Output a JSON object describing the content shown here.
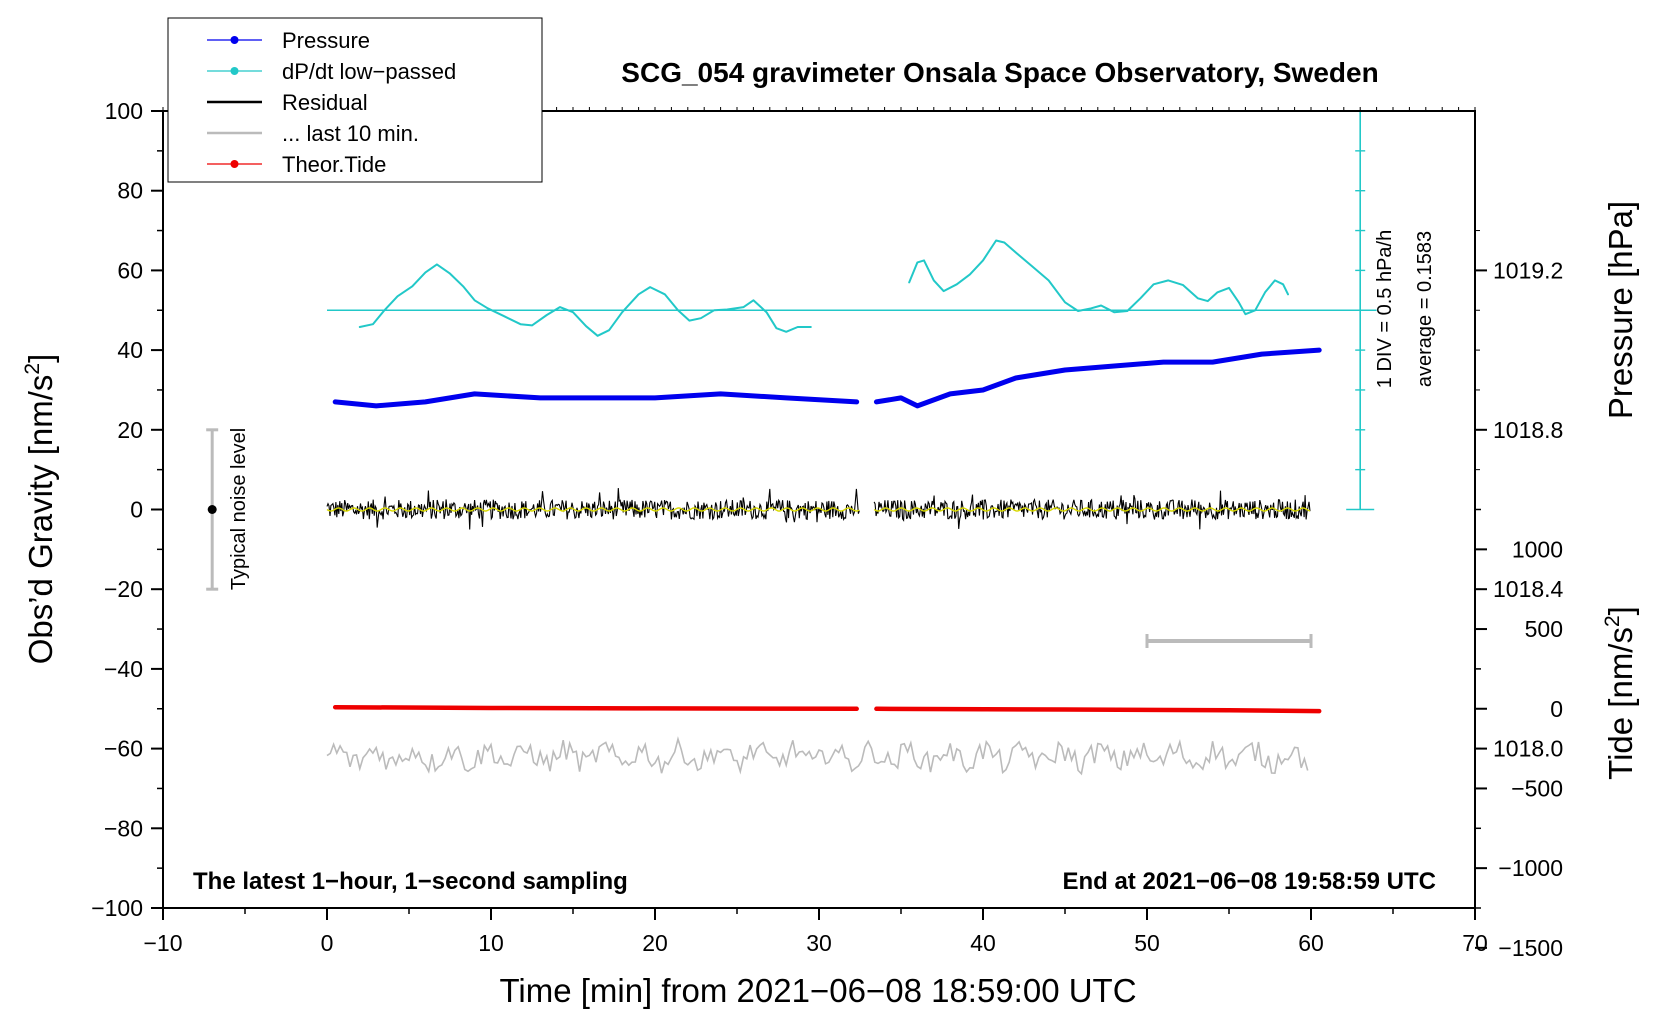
{
  "chart_data": {
    "type": "line",
    "title": "SCG_054 gravimeter Onsala Space Observatory, Sweden",
    "xlabel": "Time [min] from 2021−06−08 18:59:00 UTC",
    "ylabel_main": "Obs’d Gravity [nm/s",
    "ylabel_main_sup": "2",
    "ylabel_main_end": "]",
    "ylabel_pressure": "Pressure [hPa]",
    "ylabel_tide": "Tide [nm/s",
    "ylabel_tide_sup": "2",
    "ylabel_tide_end": "]",
    "xlim": [
      -10,
      70
    ],
    "ylim": [
      -100,
      100
    ],
    "x_ticks": [
      "−10",
      "0",
      "10",
      "20",
      "30",
      "40",
      "50",
      "60",
      "70"
    ],
    "y_ticks": [
      "100",
      "80",
      "60",
      "40",
      "20",
      "0",
      "−20",
      "−40",
      "−60",
      "−80",
      "−100"
    ],
    "pressure_ticks": [
      "1019.2",
      "1018.8",
      "1018.4",
      "1018.0"
    ],
    "tide_ticks": [
      "1000",
      "500",
      "0",
      "−500",
      "−1000",
      "−1500"
    ],
    "legend": {
      "position": "top-left",
      "entries": [
        {
          "label": "Pressure",
          "color": "#0000ee",
          "marker": true
        },
        {
          "label": "dP/dt low−passed",
          "color": "#22c8c8",
          "marker": true
        },
        {
          "label": "Residual",
          "color": "#000000",
          "marker": false
        },
        {
          "label": "... last 10 min.",
          "color": "#bbbbbb",
          "marker": false
        },
        {
          "label": "Theor.Tide",
          "color": "#ee0000",
          "marker": true
        }
      ]
    },
    "annotations": {
      "bottom_left": "The latest 1−hour, 1−second sampling",
      "bottom_right": "End at 2021−06−08 19:58:59 UTC",
      "noise": "Typical noise level",
      "div": "1 DIV = 0.5 hPa/h",
      "average": "average = 0.1583"
    },
    "series": [
      {
        "name": "Pressure",
        "unit": "hPa",
        "color": "#0000ee",
        "segments": [
          [
            [
              0.5,
              1018.87
            ],
            [
              3,
              1018.86
            ],
            [
              6,
              1018.87
            ],
            [
              9,
              1018.89
            ],
            [
              13,
              1018.88
            ],
            [
              17,
              1018.88
            ],
            [
              20,
              1018.88
            ],
            [
              24,
              1018.89
            ],
            [
              28,
              1018.88
            ],
            [
              32.3,
              1018.87
            ]
          ],
          [
            [
              33.5,
              1018.87
            ],
            [
              35,
              1018.88
            ],
            [
              36,
              1018.86
            ],
            [
              38,
              1018.89
            ],
            [
              40,
              1018.9
            ],
            [
              42,
              1018.93
            ],
            [
              45,
              1018.95
            ],
            [
              48,
              1018.96
            ],
            [
              51,
              1018.97
            ],
            [
              54,
              1018.97
            ],
            [
              57,
              1018.99
            ],
            [
              60.5,
              1019.0
            ]
          ]
        ]
      },
      {
        "name": "dP/dt low-passed",
        "unit": "nm/s2",
        "color": "#22c8c8",
        "segments": [
          [
            [
              2,
              45.8
            ],
            [
              2.8,
              46.5
            ],
            [
              3.5,
              50
            ],
            [
              4.3,
              53.5
            ],
            [
              5.2,
              56
            ],
            [
              6,
              59.5
            ],
            [
              6.7,
              61.5
            ],
            [
              7.5,
              59.2
            ],
            [
              8.3,
              56
            ],
            [
              9,
              52.5
            ],
            [
              9.8,
              50.5
            ],
            [
              10.8,
              48.5
            ],
            [
              11.8,
              46.5
            ],
            [
              12.5,
              46.2
            ],
            [
              13.4,
              48.8
            ],
            [
              14.2,
              50.8
            ],
            [
              15,
              49.5
            ],
            [
              15.8,
              46
            ],
            [
              16.5,
              43.6
            ],
            [
              17.2,
              45
            ],
            [
              18,
              49.5
            ],
            [
              19,
              54
            ],
            [
              19.7,
              55.8
            ],
            [
              20.6,
              54
            ],
            [
              21.4,
              50
            ],
            [
              22.1,
              47.4
            ],
            [
              22.8,
              48
            ],
            [
              23.6,
              50
            ],
            [
              24.4,
              50.2
            ],
            [
              25.4,
              50.8
            ],
            [
              26,
              52.5
            ],
            [
              26.8,
              49.5
            ],
            [
              27.4,
              45.5
            ],
            [
              28,
              44.6
            ],
            [
              28.7,
              45.8
            ],
            [
              29.5,
              45.8
            ]
          ],
          [
            [
              35.5,
              57
            ],
            [
              36,
              62
            ],
            [
              36.4,
              62.5
            ],
            [
              37,
              57.5
            ],
            [
              37.6,
              54.8
            ],
            [
              38.4,
              56.5
            ],
            [
              39.2,
              59
            ],
            [
              40,
              62.5
            ],
            [
              40.8,
              67.5
            ],
            [
              41.3,
              67
            ],
            [
              42,
              64.5
            ],
            [
              43,
              61
            ],
            [
              44,
              57.5
            ],
            [
              45,
              52
            ],
            [
              45.8,
              49.8
            ],
            [
              46.6,
              50.5
            ],
            [
              47.2,
              51.2
            ],
            [
              48,
              49.5
            ],
            [
              48.8,
              49.8
            ],
            [
              49.6,
              53
            ],
            [
              50.4,
              56.5
            ],
            [
              51.3,
              57.5
            ],
            [
              52.2,
              56.3
            ],
            [
              53.1,
              53
            ],
            [
              53.7,
              52.3
            ],
            [
              54.3,
              54.5
            ],
            [
              55,
              55.6
            ],
            [
              55.6,
              52
            ],
            [
              56,
              49
            ],
            [
              56.6,
              50
            ],
            [
              57.2,
              54.5
            ],
            [
              57.8,
              57.5
            ],
            [
              58.3,
              56.5
            ],
            [
              58.6,
              54
            ]
          ]
        ]
      },
      {
        "name": "Residual",
        "unit": "nm/s2",
        "color": "#000000",
        "center": 0,
        "amplitude": 2.5,
        "x_start": 0,
        "x_end": 60,
        "gap": [
          32.5,
          33.3
        ]
      },
      {
        "name": "... last 10 min.",
        "unit": "nm/s2",
        "color": "#bbbbbb",
        "center": -62,
        "amplitude": 2.8,
        "x_start": 0,
        "x_end": 60,
        "gap": []
      },
      {
        "name": "Theor.Tide",
        "unit": "nm/s2",
        "color": "#ee0000",
        "segments": [
          [
            [
              0.5,
              -49.6
            ],
            [
              10,
              -49.8
            ],
            [
              20,
              -49.9
            ],
            [
              32.3,
              -50.0
            ]
          ],
          [
            [
              33.5,
              -50.0
            ],
            [
              45,
              -50.2
            ],
            [
              55,
              -50.4
            ],
            [
              60.5,
              -50.6
            ]
          ]
        ]
      }
    ],
    "dpdt_baseline": 50,
    "dpdt_scale": {
      "x": 63,
      "y_from": 0,
      "y_to": 100
    },
    "noise_bar": {
      "x": -7,
      "y": 0,
      "low": -20,
      "high": 20
    },
    "last10_bar": {
      "x_from": 50,
      "x_to": 60,
      "y": -33
    }
  }
}
